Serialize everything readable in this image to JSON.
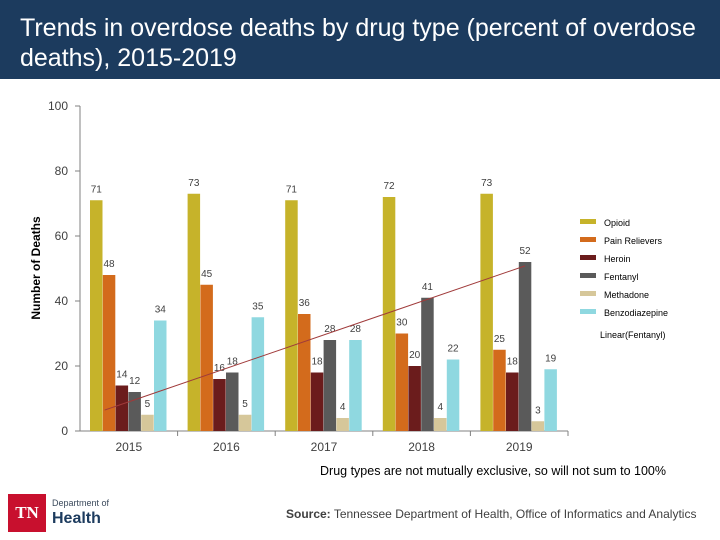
{
  "slide": {
    "title": "Trends in overdose deaths by drug type (percent of overdose deaths), 2015-2019",
    "note": "Drug types are not mutually exclusive, so will not sum to 100%",
    "source_label": "Source:",
    "source_text": "Tennessee Department of Health, Office of Informatics and Analytics",
    "logo_mark": "TN",
    "logo_dept": "Department of",
    "logo_name": "Health"
  },
  "colors": {
    "title_bar": "#1c3b5e",
    "Opioid": "#c6b32a",
    "Pain Relievers": "#d36b1c",
    "Heroin": "#6b1c1c",
    "Fentanyl": "#5a5a5a",
    "Methadone": "#d6c79a",
    "Benzodiazepine": "#8fd8e0",
    "trendline": "#a03a3a"
  },
  "chart_data": {
    "type": "bar",
    "categories": [
      "2015",
      "2016",
      "2017",
      "2018",
      "2019"
    ],
    "ylabel": "Number of Deaths",
    "xlabel": "",
    "ylim": [
      0,
      100
    ],
    "yticks": [
      0,
      20,
      40,
      60,
      80,
      100
    ],
    "grid": false,
    "legend_position": "right",
    "series": [
      {
        "name": "Opioid",
        "values": [
          71,
          73,
          71,
          72,
          73
        ]
      },
      {
        "name": "Pain Relievers",
        "values": [
          48,
          45,
          36,
          30,
          25
        ]
      },
      {
        "name": "Heroin",
        "values": [
          14,
          16,
          18,
          20,
          18
        ]
      },
      {
        "name": "Fentanyl",
        "values": [
          12,
          18,
          28,
          41,
          52
        ]
      },
      {
        "name": "Methadone",
        "values": [
          5,
          5,
          4,
          4,
          3
        ]
      },
      {
        "name": "Benzodiazepine",
        "values": [
          34,
          35,
          28,
          22,
          19
        ]
      }
    ],
    "trendline": {
      "name": "Linear(Fentanyl)",
      "of": "Fentanyl",
      "type": "linear"
    }
  }
}
